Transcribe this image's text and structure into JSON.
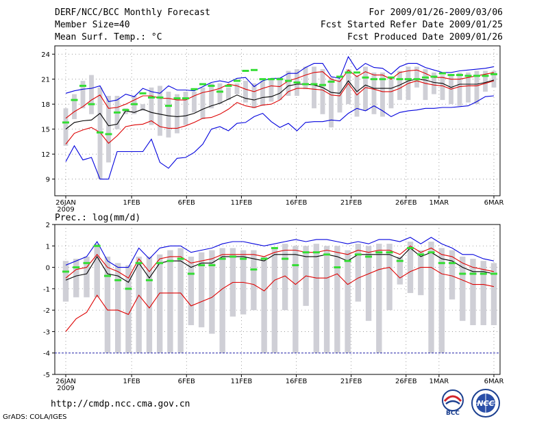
{
  "header": {
    "title": "DERF/NCC/BCC Monthly Forecast",
    "member_size": "Member Size=40",
    "variable": "Mean Surf. Temp.: °C",
    "period": "For 2009/01/26-2009/03/06",
    "started": "Fcst Started Refer Date 2009/01/25",
    "produced": "Fcst Produced Date 2009/01/26"
  },
  "footer": {
    "url": "http://cmdp.ncc.cma.gov.cn",
    "credit": "GrADS: COLA/IGES",
    "logo_bcc": "BCC",
    "logo_ncc": "NCC"
  },
  "colors": {
    "band": "#cfcfd6",
    "median": "#33dd33",
    "mean": "#000000",
    "sd": "#dd0000",
    "range": "#0000dd",
    "dashed": "#2222aa"
  },
  "chart_data": [
    {
      "type": "line",
      "title": "Mean Surf. Temp.: °C",
      "x_tick_labels": [
        "26JAN",
        "1FEB",
        "6FEB",
        "11FEB",
        "16FEB",
        "21FEB",
        "26FEB",
        "1MAR",
        "6MAR"
      ],
      "x_tick_days": [
        0,
        6,
        11,
        16,
        21,
        26,
        31,
        34,
        39
      ],
      "year_label": "2009",
      "ylim": [
        7,
        25
      ],
      "yticks": [
        9,
        12,
        15,
        18,
        21,
        24
      ],
      "series": [
        {
          "name": "max",
          "values": [
            19.3,
            19.6,
            19.8,
            19.9,
            20.2,
            18.3,
            18.5,
            19.2,
            18.9,
            19.9,
            19.5,
            19.3,
            20.2,
            19.7,
            19.7,
            19.6,
            20.1,
            20.6,
            20.8,
            20.6,
            21.1,
            21.2,
            20.1,
            20.8,
            21.1,
            21.1,
            21.7,
            21.7,
            22.4,
            22.9,
            22.9,
            21.3,
            21.1,
            23.7,
            22.1,
            22.9,
            22.4,
            22.3,
            21.6,
            22.5,
            22.9,
            22.9,
            22.4,
            22.1,
            21.8,
            21.8,
            22.0,
            22.1,
            22.2,
            22.3,
            22.5
          ]
        },
        {
          "name": "mean+sd",
          "values": [
            16.3,
            17.1,
            17.7,
            18.5,
            19.1,
            17.5,
            17.6,
            18.0,
            18.5,
            19.0,
            19.0,
            18.7,
            18.7,
            18.5,
            18.5,
            19.0,
            19.4,
            19.6,
            19.9,
            20.4,
            20.2,
            19.8,
            19.5,
            19.9,
            20.2,
            20.1,
            20.8,
            21.1,
            21.5,
            21.8,
            21.9,
            21.0,
            20.7,
            22.1,
            21.3,
            21.9,
            21.5,
            21.5,
            21.0,
            21.8,
            22.0,
            22.1,
            21.7,
            21.2,
            21.2,
            21.0,
            21.0,
            21.2,
            21.4,
            21.6,
            21.8
          ]
        },
        {
          "name": "mean",
          "values": [
            15.0,
            15.8,
            16.0,
            16.1,
            16.9,
            15.4,
            15.6,
            17.2,
            17.0,
            17.4,
            17.0,
            16.8,
            16.6,
            16.5,
            16.6,
            16.9,
            17.4,
            17.8,
            18.1,
            18.6,
            19.1,
            18.7,
            18.5,
            18.8,
            18.9,
            19.3,
            20.2,
            20.4,
            20.4,
            20.3,
            20.0,
            19.4,
            19.3,
            20.8,
            19.5,
            20.3,
            19.9,
            19.9,
            19.9,
            20.3,
            20.8,
            21.0,
            20.9,
            20.6,
            20.5,
            20.0,
            20.4,
            20.4,
            20.4,
            20.6,
            20.9
          ]
        },
        {
          "name": "mean-sd",
          "values": [
            13.2,
            14.5,
            14.9,
            15.2,
            14.6,
            13.3,
            14.2,
            15.3,
            15.5,
            15.6,
            16.0,
            15.3,
            15.1,
            15.1,
            15.4,
            15.8,
            16.3,
            16.4,
            16.8,
            17.4,
            18.2,
            17.8,
            17.6,
            17.9,
            18.0,
            18.5,
            19.5,
            19.9,
            19.9,
            19.8,
            19.7,
            19.1,
            19.0,
            20.5,
            19.1,
            20.0,
            19.8,
            19.5,
            19.5,
            19.9,
            20.5,
            20.8,
            20.5,
            20.3,
            20.2,
            19.8,
            20.1,
            20.2,
            20.2,
            20.5,
            20.8
          ]
        },
        {
          "name": "min",
          "values": [
            11.1,
            13.0,
            11.3,
            11.6,
            9.0,
            9.0,
            12.3,
            12.3,
            12.3,
            12.3,
            13.8,
            11.0,
            10.3,
            11.5,
            11.6,
            12.2,
            13.2,
            15.0,
            15.3,
            14.8,
            15.7,
            15.8,
            16.5,
            16.9,
            15.9,
            15.2,
            15.7,
            14.8,
            15.8,
            15.9,
            15.9,
            16.1,
            16.0,
            16.9,
            17.5,
            17.2,
            17.8,
            17.2,
            16.5,
            17.0,
            17.2,
            17.3,
            17.5,
            17.5,
            17.6,
            17.6,
            17.7,
            17.8,
            18.3,
            18.9,
            19.0
          ]
        },
        {
          "name": "member_min",
          "values": [
            13.0,
            16.2,
            17.5,
            16.8,
            9.0,
            11.0,
            15.0,
            16.8,
            16.8,
            17.2,
            15.5,
            14.2,
            14.0,
            14.5,
            15.5,
            17.0,
            16.2,
            17.5,
            18.0,
            18.5,
            19.2,
            18.2,
            17.5,
            17.8,
            18.3,
            18.5,
            19.0,
            19.0,
            19.8,
            17.5,
            16.8,
            15.2,
            17.0,
            18.0,
            16.5,
            17.2,
            16.8,
            16.5,
            17.5,
            18.5,
            18.5,
            20.0,
            18.5,
            19.2,
            18.5,
            18.0,
            17.8,
            18.2,
            18.0,
            19.5,
            20.0
          ]
        },
        {
          "name": "member_max",
          "values": [
            17.5,
            19.2,
            20.8,
            21.5,
            20.0,
            19.0,
            19.0,
            17.5,
            19.0,
            18.0,
            20.0,
            20.2,
            19.5,
            19.2,
            19.5,
            19.5,
            20.0,
            20.5,
            20.5,
            20.0,
            20.5,
            20.8,
            20.5,
            20.8,
            21.0,
            21.2,
            22.0,
            22.2,
            22.5,
            22.5,
            22.2,
            21.2,
            21.0,
            22.2,
            21.5,
            22.5,
            21.8,
            21.8,
            21.2,
            22.0,
            22.5,
            22.5,
            22.2,
            21.8,
            21.5,
            21.5,
            21.8,
            21.8,
            22.0,
            22.0,
            22.0
          ]
        },
        {
          "name": "median",
          "values": [
            15.8,
            18.5,
            20.2,
            18.0,
            14.6,
            14.4,
            17.0,
            17.3,
            18.0,
            19.3,
            18.8,
            18.8,
            17.8,
            18.7,
            18.7,
            19.8,
            20.4,
            20.2,
            19.5,
            20.2,
            20.8,
            22.0,
            22.1,
            21.0,
            21.0,
            21.0,
            20.8,
            20.6,
            20.4,
            20.4,
            20.3,
            20.7,
            21.3,
            21.8,
            21.8,
            21.2,
            21.0,
            21.0,
            21.2,
            21.0,
            21.0,
            21.0,
            21.2,
            21.3,
            21.7,
            21.5,
            21.5,
            21.4,
            21.4,
            21.4,
            21.6
          ]
        }
      ]
    },
    {
      "type": "line",
      "title": "Prec.: log(mm/d)",
      "x_tick_labels": [
        "26JAN",
        "1FEB",
        "6FEB",
        "11FEB",
        "16FEB",
        "21FEB",
        "26FEB",
        "1MAR",
        "6MAR"
      ],
      "x_tick_days": [
        0,
        6,
        11,
        16,
        21,
        26,
        31,
        34,
        39
      ],
      "year_label": "2009",
      "ylim": [
        -5,
        2
      ],
      "yticks": [
        -5,
        -4,
        -3,
        -2,
        -1,
        0,
        1,
        2
      ],
      "series": [
        {
          "name": "max",
          "values": [
            0.1,
            0.3,
            0.5,
            1.2,
            0.3,
            0.0,
            0.0,
            0.9,
            0.4,
            0.9,
            1.0,
            1.0,
            0.7,
            0.8,
            0.9,
            1.1,
            1.2,
            1.2,
            1.1,
            1.0,
            1.1,
            1.2,
            1.3,
            1.2,
            1.3,
            1.3,
            1.2,
            1.1,
            1.2,
            1.1,
            1.3,
            1.3,
            1.2,
            1.4,
            1.1,
            1.4,
            1.1,
            0.9,
            0.6,
            0.6,
            0.4,
            0.3
          ]
        },
        {
          "name": "mean+sd",
          "values": [
            -0.5,
            -0.1,
            0.0,
            0.6,
            0.0,
            -0.2,
            -0.5,
            0.4,
            -0.2,
            0.4,
            0.5,
            0.5,
            0.2,
            0.3,
            0.4,
            0.6,
            0.6,
            0.6,
            0.6,
            0.5,
            0.7,
            0.8,
            0.8,
            0.7,
            0.7,
            0.8,
            0.7,
            0.6,
            0.8,
            0.7,
            0.8,
            0.8,
            0.6,
            1.0,
            0.7,
            0.9,
            0.6,
            0.5,
            0.2,
            0.0,
            -0.1,
            -0.2
          ]
        },
        {
          "name": "mean",
          "values": [
            -0.6,
            -0.4,
            -0.3,
            0.5,
            -0.3,
            -0.4,
            -0.7,
            0.2,
            -0.5,
            0.2,
            0.3,
            0.3,
            0.0,
            0.2,
            0.2,
            0.5,
            0.5,
            0.5,
            0.4,
            0.3,
            0.6,
            0.6,
            0.6,
            0.5,
            0.5,
            0.6,
            0.5,
            0.3,
            0.6,
            0.6,
            0.6,
            0.6,
            0.4,
            0.9,
            0.5,
            0.7,
            0.4,
            0.3,
            0.0,
            -0.2,
            -0.2,
            -0.3
          ]
        },
        {
          "name": "mean-sd",
          "values": [
            -3.0,
            -2.4,
            -2.1,
            -1.3,
            -2.0,
            -2.0,
            -2.2,
            -1.3,
            -1.9,
            -1.2,
            -1.2,
            -1.2,
            -1.8,
            -1.6,
            -1.4,
            -1.0,
            -0.7,
            -0.7,
            -0.8,
            -1.1,
            -0.6,
            -0.4,
            -0.8,
            -0.4,
            -0.5,
            -0.5,
            -0.3,
            -0.8,
            -0.5,
            -0.3,
            -0.1,
            0.0,
            -0.5,
            -0.2,
            0.0,
            0.0,
            -0.3,
            -0.4,
            -0.6,
            -0.8,
            -0.8,
            -0.9
          ]
        },
        {
          "name": "min",
          "values": [
            -4,
            -4,
            -4,
            -4,
            -4,
            -4,
            -4,
            -4,
            -4,
            -4,
            -4,
            -4,
            -4,
            -4,
            -4,
            -4,
            -4,
            -4,
            -4,
            -4,
            -4,
            -4,
            -4,
            -4,
            -4,
            -4,
            -4,
            -4,
            -4,
            -4,
            -4,
            -4,
            -4,
            -4,
            -4,
            -4,
            -4,
            -4,
            -4,
            -4,
            -4,
            -4
          ]
        },
        {
          "name": "member_min",
          "values": [
            -1.6,
            -1.4,
            -1.4,
            -1.4,
            -4.0,
            -4.0,
            -4.0,
            -4.0,
            -4.0,
            -4.0,
            -4.0,
            -4.0,
            -2.7,
            -2.8,
            -3.1,
            -4.0,
            -2.3,
            -2.2,
            -2.0,
            -4.0,
            -4.0,
            -2.0,
            -4.0,
            -1.8,
            -4.0,
            -4.0,
            -4.0,
            -4.0,
            -1.6,
            -2.5,
            -4.0,
            -2.0,
            -0.8,
            -1.2,
            -1.3,
            -4.0,
            -4.0,
            -1.5,
            -2.5,
            -2.7,
            -2.7,
            -2.7
          ]
        },
        {
          "name": "member_max",
          "values": [
            0.3,
            0.4,
            0.5,
            1.1,
            0.5,
            0.2,
            0.1,
            0.5,
            0.5,
            0.6,
            0.8,
            0.9,
            0.5,
            0.7,
            0.8,
            0.9,
            0.9,
            0.8,
            0.8,
            0.5,
            0.9,
            1.1,
            1.0,
            1.0,
            1.1,
            1.0,
            1.0,
            0.8,
            1.1,
            1.0,
            1.1,
            1.1,
            0.5,
            1.2,
            0.8,
            1.2,
            0.9,
            0.8,
            0.5,
            0.4,
            0.3,
            0.2
          ]
        },
        {
          "name": "median",
          "values": [
            -0.2,
            0.0,
            0.2,
            1.0,
            -0.4,
            -0.6,
            -1.0,
            0.2,
            -0.6,
            0.2,
            0.3,
            0.4,
            -0.3,
            0.1,
            0.1,
            0.4,
            0.5,
            0.4,
            -0.1,
            0.4,
            0.9,
            0.4,
            0.1,
            0.7,
            0.7,
            0.6,
            0.0,
            0.3,
            0.6,
            0.5,
            0.7,
            0.7,
            0.3,
            0.9,
            0.6,
            0.7,
            0.2,
            0.2,
            -0.3,
            -0.3,
            -0.3,
            -0.3
          ]
        }
      ]
    }
  ]
}
